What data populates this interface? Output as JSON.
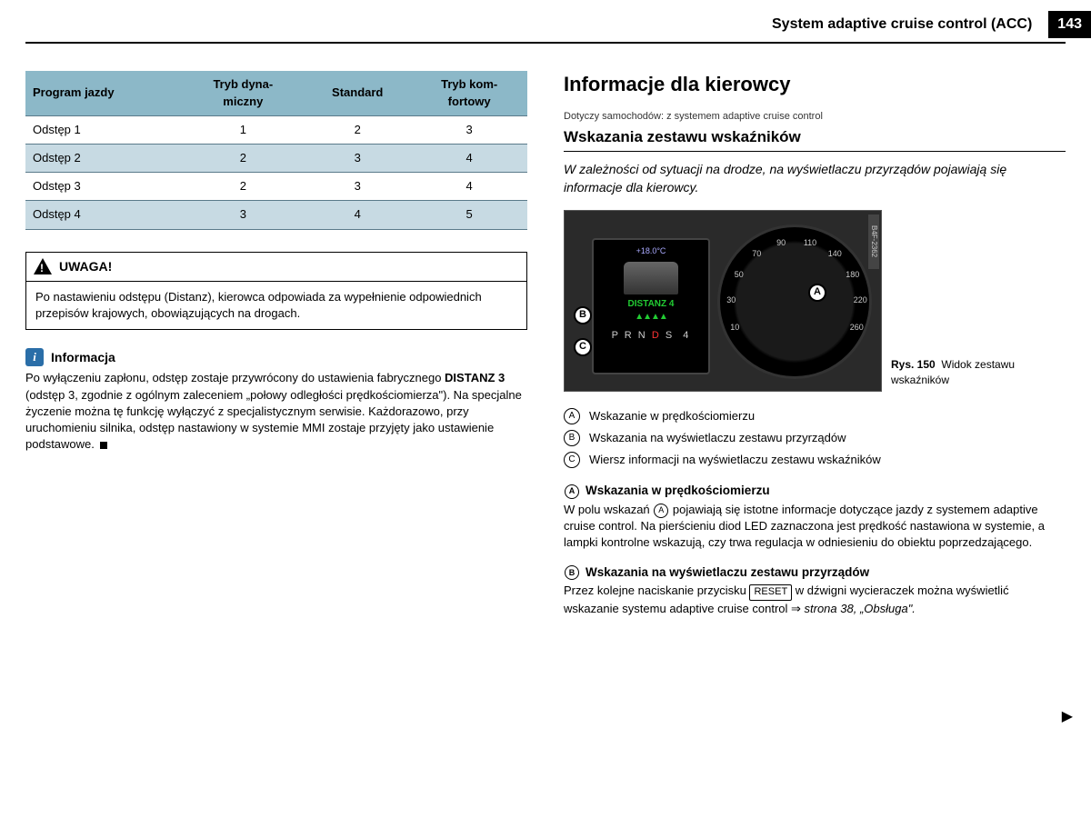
{
  "header": {
    "title": "System adaptive cruise control (ACC)",
    "page_number": "143"
  },
  "table": {
    "columns": [
      "Program jazdy",
      "Tryb dyna-\nmiczny",
      "Standard",
      "Tryb kom-\nfortowy"
    ],
    "rows": [
      {
        "label": "Odstęp 1",
        "vals": [
          "1",
          "2",
          "3"
        ],
        "stripe": false
      },
      {
        "label": "Odstęp 2",
        "vals": [
          "2",
          "3",
          "4"
        ],
        "stripe": true
      },
      {
        "label": "Odstęp 3",
        "vals": [
          "2",
          "3",
          "4"
        ],
        "stripe": false
      },
      {
        "label": "Odstęp 4",
        "vals": [
          "3",
          "4",
          "5"
        ],
        "stripe": true
      }
    ],
    "header_bg": "#8cb8c8",
    "stripe_bg": "#c7dae3",
    "border_color": "#5a7a8a"
  },
  "warning": {
    "title": "UWAGA!",
    "body": "Po nastawieniu odstępu (Distanz), kierowca odpowiada za wypełnienie odpowiednich przepisów krajowych, obowiązujących na drogach."
  },
  "info": {
    "title": "Informacja",
    "icon_label": "i",
    "body_pre": "Po wyłączeniu zapłonu, odstęp zostaje przywrócony do ustawienia fabrycznego ",
    "body_bold": "DISTANZ 3",
    "body_post": " (odstęp 3, zgodnie z ogólnym zaleceniem „połowy odległości prędkościomierza\"). Na specjalne życzenie można tę funkcję wyłączyć z specjalistycznym serwisie. Każdorazowo, przy uruchomieniu silnika, odstęp nastawiony w systemie MMI zostaje przyjęty jako ustawienie podstawowe."
  },
  "right": {
    "section_title": "Informacje dla kierowcy",
    "applies": "Dotyczy samochodów: z systemem adaptive cruise control",
    "sub_title": "Wskazania zestawu wskaźników",
    "intro": "W zależności od sytuacji na drodze, na wyświetlaczu przyrządów pojawiają się informacje dla kierowcy.",
    "figure": {
      "caption_label": "Rys. 150",
      "caption_text": "Widok zestawu wskaźników",
      "code": "B4F-2362",
      "display": {
        "temp": "+18.0°C",
        "distance_label": "DISTANZ 4",
        "gear_text": "P R N D S  4",
        "gear_selected": "D"
      },
      "speedo_ticks": [
        "10",
        "30",
        "50",
        "70",
        "90",
        "110",
        "140",
        "180",
        "220",
        "260"
      ],
      "callouts": [
        "A",
        "B",
        "C"
      ]
    },
    "legend": [
      {
        "mark": "A",
        "text": "Wskazanie w prędkościomierzu"
      },
      {
        "mark": "B",
        "text": "Wskazania na wyświetlaczu zestawu przyrządów"
      },
      {
        "mark": "C",
        "text": "Wiersz informacji na wyświetlaczu zestawu wskaźników"
      }
    ],
    "section_a": {
      "mark": "A",
      "title": "Wskazania w prędkościomierzu",
      "text_pre": "W polu wskazań ",
      "text_post": " pojawiają się istotne informacje dotyczące jazdy z systemem adaptive cruise control. Na pierścieniu diod LED zaznaczona jest prędkość nastawiona w systemie, a lampki kontrolne wskazują, czy trwa regulacja w odniesieniu do obiektu poprzedzającego."
    },
    "section_b": {
      "mark": "B",
      "title": "Wskazania na wyświetlaczu zestawu przyrządów",
      "text_pre": "Przez kolejne naciskanie przycisku ",
      "button": "RESET",
      "text_mid": " w dźwigni wycieraczek można wyświetlić wskazanie systemu adaptive cruise control ⇒ ",
      "ref": "strona 38, „Obsługa\"."
    }
  },
  "colors": {
    "info_icon_bg": "#2a6ea8",
    "dash_bg": "#2a2a2a",
    "green": "#22cc33",
    "red": "#ff3333"
  }
}
